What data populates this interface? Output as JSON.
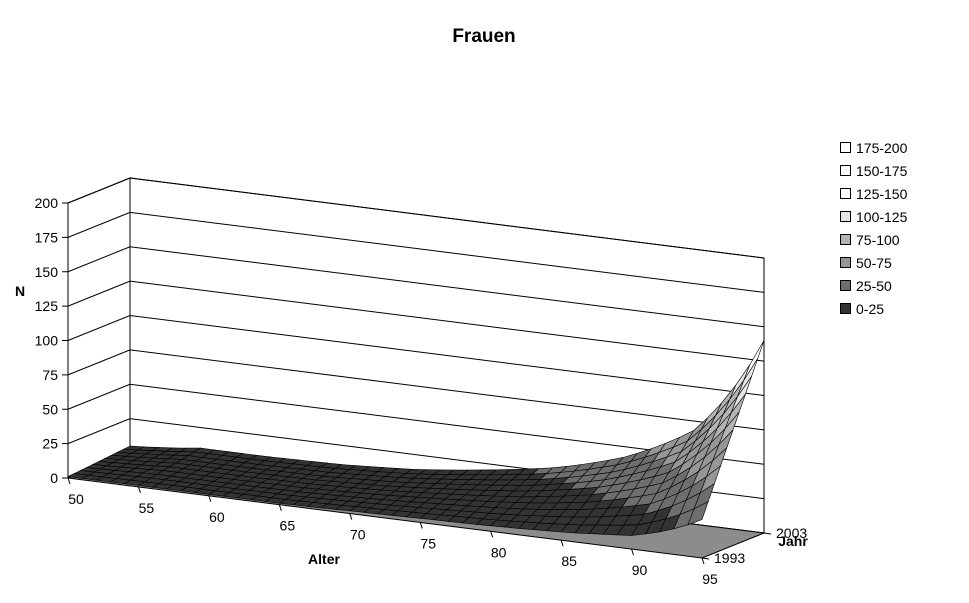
{
  "chart_data": {
    "type": "surface",
    "title": "Frauen",
    "zlabel": "N",
    "xlabel": "Alter",
    "ylabel": "Jahr",
    "zlim": [
      0,
      200
    ],
    "z_ticks": [
      "0",
      "25",
      "50",
      "75",
      "100",
      "125",
      "150",
      "175",
      "200"
    ],
    "x_ticks": [
      "50",
      "55",
      "60",
      "65",
      "70",
      "75",
      "80",
      "85",
      "90",
      "95"
    ],
    "y_ticks": [
      "1993",
      "2003"
    ],
    "age_grid": [
      50,
      55,
      60,
      65,
      70,
      75,
      80,
      85,
      90,
      95
    ],
    "year_grid": [
      1993,
      2003
    ],
    "values_by_year": [
      {
        "year": 1993,
        "values": [
          1,
          1,
          1,
          1,
          2,
          3,
          4,
          6,
          10,
          28
        ]
      },
      {
        "year": 2003,
        "values": [
          5,
          10,
          10,
          11,
          14,
          20,
          28,
          42,
          68,
          140
        ]
      }
    ],
    "legend": {
      "position": "right",
      "entries": [
        {
          "label": "175-200",
          "color": "#ffffff"
        },
        {
          "label": "150-175",
          "color": "#ffffff"
        },
        {
          "label": "125-150",
          "color": "#ffffff"
        },
        {
          "label": "100-125",
          "color": "#e6e6e6"
        },
        {
          "label": "75-100",
          "color": "#b4b4b4"
        },
        {
          "label": "50-75",
          "color": "#969696"
        },
        {
          "label": "25-50",
          "color": "#6e6e6e"
        },
        {
          "label": "0-25",
          "color": "#333333"
        }
      ]
    },
    "grid": true
  }
}
